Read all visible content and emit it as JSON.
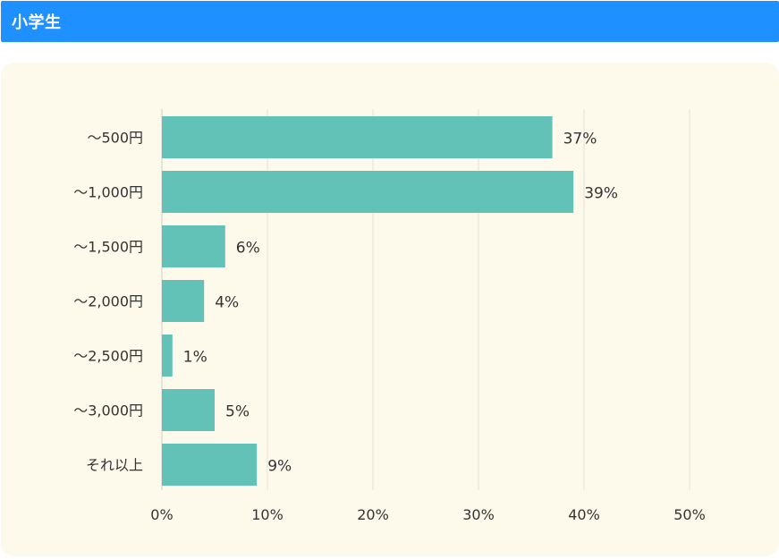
{
  "header": {
    "title": "小学生"
  },
  "colors": {
    "header": "#1e90ff",
    "panel": "#fdfaeb",
    "bar": "#62c2b8",
    "grid": "#e2e2d6"
  },
  "chart_data": {
    "type": "bar",
    "orientation": "horizontal",
    "categories": [
      "～500円",
      "～1,000円",
      "～1,500円",
      "～2,000円",
      "～2,500円",
      "～3,000円",
      "それ以上"
    ],
    "values": [
      37,
      39,
      6,
      4,
      1,
      5,
      9
    ],
    "value_labels": [
      "37%",
      "39%",
      "6%",
      "4%",
      "1%",
      "5%",
      "9%"
    ],
    "xlim": [
      0,
      50
    ],
    "xticks": [
      0,
      10,
      20,
      30,
      40,
      50
    ],
    "xtick_labels": [
      "0%",
      "10%",
      "20%",
      "30%",
      "40%",
      "50%"
    ],
    "grid": true
  }
}
